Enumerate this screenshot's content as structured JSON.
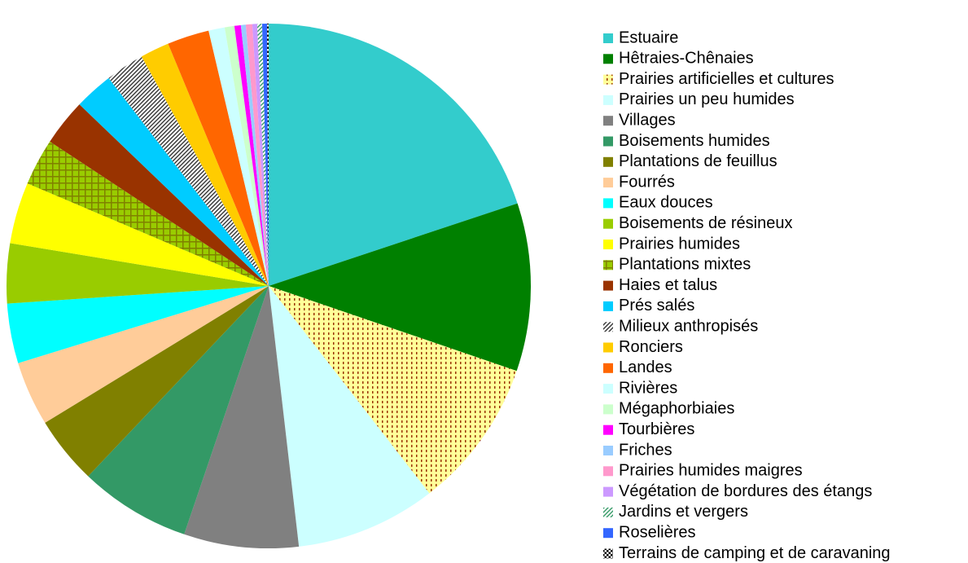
{
  "chart_data": {
    "type": "pie",
    "slices": [
      {
        "name": "Estuaire",
        "value": 20,
        "color": "#33cccc"
      },
      {
        "name": "Hêtraies-Chênaies",
        "value": 10.4,
        "color": "#008000"
      },
      {
        "name": "Prairies artificielles et cultures",
        "value": 9.3,
        "color": "#ffff99",
        "pattern": "dots",
        "pattern_color": "#993300"
      },
      {
        "name": "Prairies un peu humides",
        "value": 8.7,
        "color": "#ccffff"
      },
      {
        "name": "Villages",
        "value": 7.1,
        "color": "#808080"
      },
      {
        "name": "Boisements humides",
        "value": 6.9,
        "color": "#339966"
      },
      {
        "name": "Plantations de feuillus",
        "value": 4.2,
        "color": "#808000"
      },
      {
        "name": "Fourrés",
        "value": 4,
        "color": "#ffcc99"
      },
      {
        "name": "Eaux douces",
        "value": 3.7,
        "color": "#00ffff"
      },
      {
        "name": "Boisements de résineux",
        "value": 3.7,
        "color": "#99cc00"
      },
      {
        "name": "Prairies humides",
        "value": 3.8,
        "color": "#ffff00"
      },
      {
        "name": "Plantations mixtes",
        "value": 2.9,
        "color": "#99cc00",
        "pattern": "grid",
        "pattern_color": "#808000"
      },
      {
        "name": "Haies et talus",
        "value": 2.9,
        "color": "#993300"
      },
      {
        "name": "Prés salés",
        "value": 2.4,
        "color": "#00ccff"
      },
      {
        "name": "Milieux anthropisés",
        "value": 2.4,
        "color": "#ffffff",
        "pattern": "hatch",
        "pattern_color": "#333333"
      },
      {
        "name": "Ronciers",
        "value": 1.8,
        "color": "#ffcc00"
      },
      {
        "name": "Landes",
        "value": 2.6,
        "color": "#ff6600"
      },
      {
        "name": "Rivières",
        "value": 1,
        "color": "#ccffff"
      },
      {
        "name": "Mégaphorbiaies",
        "value": 0.6,
        "color": "#ccffcc"
      },
      {
        "name": "Tourbières",
        "value": 0.4,
        "color": "#ff00ff"
      },
      {
        "name": "Friches",
        "value": 0.3,
        "color": "#99ccff"
      },
      {
        "name": "Prairies humides maigres",
        "value": 0.4,
        "color": "#ff99cc"
      },
      {
        "name": "Végétation de bordures des étangs",
        "value": 0.3,
        "color": "#cc99ff"
      },
      {
        "name": "Jardins et vergers",
        "value": 0.3,
        "color": "#ffffff",
        "pattern": "hatch",
        "pattern_color": "#339966"
      },
      {
        "name": "Roselières",
        "value": 0.3,
        "color": "#3366ff"
      },
      {
        "name": "Terrains de camping et de caravaning",
        "value": 0.1,
        "color": "#ffffff",
        "pattern": "checker",
        "pattern_color": "#000000"
      }
    ]
  }
}
